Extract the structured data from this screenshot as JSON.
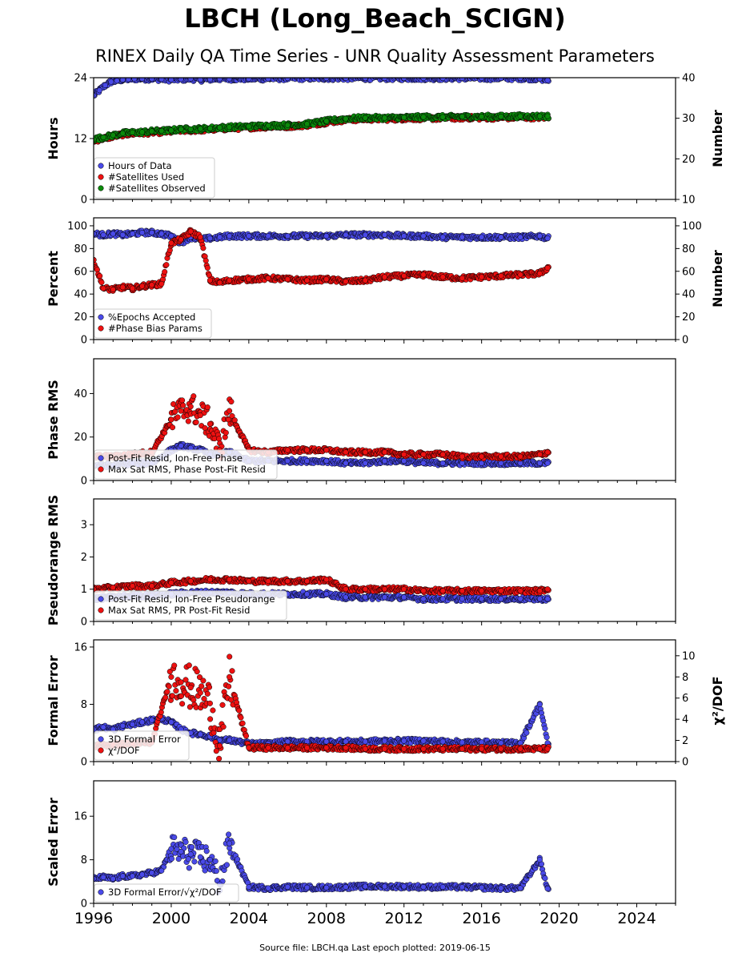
{
  "title": "LBCH (Long_Beach_SCIGN)",
  "subtitle": "RINEX Daily QA Time Series - UNR Quality Assessment Parameters",
  "footer": "Source file: LBCH.qa Last epoch plotted: 2019-06-15",
  "colors": {
    "blue": "#4a4ae8",
    "red": "#ee1111",
    "green": "#0b8a0b",
    "edge": "#000000"
  },
  "chart_data": [
    {
      "type": "scatter",
      "ylabel": "Hours",
      "ylabel_right": "Number",
      "xlim": [
        1996,
        2026
      ],
      "ylim": [
        0,
        24
      ],
      "ylim_right": [
        10,
        40
      ],
      "yticks": [
        0,
        12,
        24
      ],
      "yticks_right": [
        10,
        20,
        30,
        40
      ],
      "legend_position": "lower-left",
      "series": [
        {
          "name": "Hours of Data",
          "color": "blue",
          "axis": "left",
          "x": [
            1996.0,
            1996.3,
            1996.6,
            1996.9,
            1997.2,
            1997.5,
            1997.8,
            1998.1,
            1998.5,
            1999.0,
            1999.5,
            2000.0,
            2000.5,
            2001.0,
            2001.5,
            2002.0,
            2002.5,
            2003.0,
            2004.0,
            2005.0,
            2006.0,
            2007.0,
            2008.0,
            2009.0,
            2010.0,
            2011.0,
            2012.0,
            2013.0,
            2014.0,
            2015.0,
            2016.0,
            2017.0,
            2018.0,
            2019.0,
            2019.4
          ],
          "y": [
            20.5,
            21.5,
            22.5,
            23.2,
            23.4,
            23.6,
            23.7,
            23.8,
            23.8,
            23.8,
            23.7,
            23.6,
            23.7,
            23.8,
            23.6,
            23.7,
            23.8,
            23.8,
            23.8,
            23.8,
            23.9,
            23.9,
            23.9,
            23.9,
            23.9,
            23.9,
            23.9,
            23.9,
            23.9,
            23.9,
            23.9,
            23.9,
            23.9,
            23.8,
            23.5
          ]
        },
        {
          "name": "#Satellites Used",
          "color": "red",
          "axis": "right",
          "x": [
            1996.0,
            1996.5,
            1997.0,
            1997.5,
            1998.0,
            1998.5,
            1999.0,
            1999.5,
            2000.0,
            2000.5,
            2001.0,
            2001.5,
            2002.0,
            2002.5,
            2003.0,
            2004.0,
            2005.0,
            2006.0,
            2007.0,
            2008.0,
            2009.0,
            2010.0,
            2011.0,
            2012.0,
            2013.0,
            2014.0,
            2015.0,
            2016.0,
            2017.0,
            2018.0,
            2019.0,
            2019.4
          ],
          "y": [
            24.5,
            25.0,
            25.5,
            26.0,
            26.2,
            26.3,
            26.5,
            26.6,
            26.7,
            27.0,
            27.0,
            27.1,
            27.2,
            27.4,
            27.5,
            27.7,
            27.9,
            28.0,
            28.3,
            29.0,
            29.6,
            29.8,
            29.8,
            29.9,
            30.0,
            30.0,
            30.1,
            30.1,
            30.1,
            30.2,
            30.2,
            30.2
          ]
        },
        {
          "name": "#Satellites Observed",
          "color": "green",
          "axis": "right",
          "x": [
            1996.0,
            1996.5,
            1997.0,
            1997.5,
            1998.0,
            1998.5,
            1999.0,
            1999.5,
            2000.0,
            2000.5,
            2001.0,
            2001.5,
            2002.0,
            2002.5,
            2003.0,
            2004.0,
            2005.0,
            2006.0,
            2007.0,
            2008.0,
            2009.0,
            2010.0,
            2011.0,
            2012.0,
            2013.0,
            2014.0,
            2015.0,
            2016.0,
            2017.0,
            2018.0,
            2019.0,
            2019.4
          ],
          "y": [
            24.8,
            25.3,
            25.8,
            26.3,
            26.5,
            26.6,
            26.8,
            26.9,
            27.0,
            27.3,
            27.3,
            27.4,
            27.5,
            27.7,
            27.8,
            28.0,
            28.2,
            28.3,
            28.6,
            29.3,
            29.9,
            30.1,
            30.1,
            30.2,
            30.3,
            30.3,
            30.4,
            30.4,
            30.4,
            30.5,
            30.5,
            30.5
          ]
        }
      ]
    },
    {
      "type": "scatter",
      "ylabel": "Percent",
      "ylabel_right": "Number",
      "xlim": [
        1996,
        2026
      ],
      "ylim": [
        0,
        107
      ],
      "ylim_right": [
        0,
        107
      ],
      "yticks": [
        0,
        20,
        40,
        60,
        80,
        100
      ],
      "yticks_right": [
        0,
        20,
        40,
        60,
        80,
        100
      ],
      "legend_position": "lower-left",
      "series": [
        {
          "name": "%Epochs Accepted",
          "color": "blue",
          "axis": "left",
          "x": [
            1996.0,
            1996.5,
            1997.0,
            1997.5,
            1998.0,
            1998.5,
            1999.0,
            1999.5,
            2000.0,
            2000.5,
            2001.0,
            2001.5,
            2002.0,
            2002.5,
            2003.0,
            2004.0,
            2005.0,
            2006.0,
            2007.0,
            2008.0,
            2009.0,
            2010.0,
            2011.0,
            2012.0,
            2013.0,
            2014.0,
            2015.0,
            2016.0,
            2017.0,
            2018.0,
            2019.0,
            2019.4
          ],
          "y": [
            93,
            92,
            93,
            92,
            93,
            94,
            94,
            93,
            91,
            85,
            90,
            88,
            89,
            90,
            91,
            91,
            91,
            91,
            91,
            91,
            92,
            92,
            92,
            91,
            91,
            90,
            90,
            90,
            90,
            90,
            91,
            89
          ]
        },
        {
          "name": "#Phase Bias Params",
          "color": "red",
          "axis": "right",
          "x": [
            1996.0,
            1996.5,
            1997.0,
            1997.5,
            1998.0,
            1998.5,
            1999.0,
            1999.5,
            2000.0,
            2000.5,
            2001.0,
            2001.5,
            2002.0,
            2002.5,
            2003.0,
            2004.0,
            2005.0,
            2006.0,
            2007.0,
            2008.0,
            2009.0,
            2010.0,
            2011.0,
            2012.0,
            2013.0,
            2014.0,
            2015.0,
            2016.0,
            2017.0,
            2018.0,
            2019.0,
            2019.4
          ],
          "y": [
            70,
            45,
            44,
            46,
            45,
            47,
            48,
            49,
            85,
            88,
            95,
            90,
            52,
            50,
            52,
            53,
            54,
            53,
            52,
            53,
            51,
            52,
            55,
            56,
            57,
            55,
            54,
            55,
            56,
            57,
            58,
            63
          ]
        }
      ]
    },
    {
      "type": "scatter",
      "ylabel": "Phase RMS",
      "xlim": [
        1996,
        2026
      ],
      "ylim": [
        0,
        56
      ],
      "yticks": [
        0,
        20,
        40
      ],
      "legend_position": "lower-left",
      "series": [
        {
          "name": "Post-Fit Resid, Ion-Free Phase",
          "color": "blue",
          "axis": "left",
          "x": [
            1996.0,
            1997.0,
            1998.0,
            1999.0,
            2000.0,
            2000.5,
            2001.0,
            2001.5,
            2002.0,
            2002.5,
            2003.0,
            2004.0,
            2005.0,
            2006.0,
            2007.0,
            2008.0,
            2009.0,
            2010.0,
            2011.0,
            2012.0,
            2013.0,
            2014.0,
            2015.0,
            2016.0,
            2017.0,
            2018.0,
            2019.0,
            2019.4
          ],
          "y": [
            7,
            7,
            8,
            8,
            14,
            16,
            15,
            14,
            12,
            12,
            13,
            9,
            9,
            9,
            9,
            9,
            8,
            8,
            9,
            9,
            8,
            8,
            8,
            8,
            8,
            8,
            8,
            8
          ]
        },
        {
          "name": "Max Sat RMS, Phase Post-Fit Resid",
          "color": "red",
          "axis": "left",
          "x": [
            1996.0,
            1997.0,
            1998.0,
            1999.0,
            2000.0,
            2000.5,
            2001.0,
            2001.5,
            2002.0,
            2002.5,
            2003.0,
            2004.0,
            2005.0,
            2006.0,
            2007.0,
            2008.0,
            2009.0,
            2010.0,
            2011.0,
            2012.0,
            2013.0,
            2014.0,
            2015.0,
            2016.0,
            2017.0,
            2018.0,
            2019.0,
            2019.4
          ],
          "y": [
            11,
            11,
            12,
            13,
            28,
            32,
            34,
            30,
            26,
            14,
            32,
            14,
            13,
            14,
            14,
            14,
            13,
            13,
            13,
            12,
            12,
            12,
            11,
            11,
            11,
            11,
            12,
            13
          ]
        }
      ]
    },
    {
      "type": "scatter",
      "ylabel": "Pseudorange RMS",
      "xlim": [
        1996,
        2026
      ],
      "ylim": [
        0,
        3.8
      ],
      "yticks": [
        0,
        1,
        2,
        3
      ],
      "legend_position": "lower-left",
      "series": [
        {
          "name": "Post-Fit Resid, Ion-Free Pseudorange",
          "color": "blue",
          "axis": "left",
          "x": [
            1996.0,
            1997.0,
            1998.0,
            1999.0,
            2000.0,
            2001.0,
            2002.0,
            2003.0,
            2004.0,
            2005.0,
            2006.0,
            2007.0,
            2008.0,
            2009.0,
            2010.0,
            2011.0,
            2012.0,
            2013.0,
            2014.0,
            2015.0,
            2016.0,
            2017.0,
            2018.0,
            2019.0,
            2019.4
          ],
          "y": [
            0.7,
            0.75,
            0.8,
            0.8,
            0.85,
            0.9,
            0.9,
            0.9,
            0.85,
            0.85,
            0.85,
            0.85,
            0.85,
            0.75,
            0.75,
            0.75,
            0.75,
            0.7,
            0.7,
            0.7,
            0.7,
            0.7,
            0.7,
            0.7,
            0.7
          ]
        },
        {
          "name": "Max Sat RMS, PR Post-Fit Resid",
          "color": "red",
          "axis": "left",
          "x": [
            1996.0,
            1997.0,
            1998.0,
            1999.0,
            2000.0,
            2001.0,
            2002.0,
            2003.0,
            2004.0,
            2005.0,
            2006.0,
            2007.0,
            2008.0,
            2009.0,
            2010.0,
            2011.0,
            2012.0,
            2013.0,
            2014.0,
            2015.0,
            2016.0,
            2017.0,
            2018.0,
            2019.0,
            2019.4
          ],
          "y": [
            1.0,
            1.05,
            1.1,
            1.1,
            1.2,
            1.25,
            1.3,
            1.3,
            1.25,
            1.25,
            1.25,
            1.25,
            1.3,
            1.0,
            1.0,
            1.0,
            1.0,
            0.95,
            0.95,
            0.95,
            0.95,
            0.95,
            0.95,
            0.95,
            1.0
          ]
        }
      ]
    },
    {
      "type": "scatter",
      "ylabel": "Formal Error",
      "ylabel_right": "χ²/DOF",
      "xlim": [
        1996,
        2026
      ],
      "ylim": [
        0,
        17
      ],
      "ylim_right": [
        0,
        11.5
      ],
      "yticks": [
        0,
        8,
        16
      ],
      "yticks_right": [
        0,
        2,
        4,
        6,
        8,
        10
      ],
      "legend_position": "lower-left",
      "series": [
        {
          "name": "3D Formal Error",
          "color": "blue",
          "axis": "left",
          "x": [
            1996.0,
            1996.5,
            1997.0,
            1997.5,
            1998.0,
            1998.5,
            1999.0,
            1999.5,
            2000.0,
            2000.5,
            2001.0,
            2001.5,
            2002.0,
            2002.5,
            2003.0,
            2004.0,
            2005.0,
            2006.0,
            2007.0,
            2008.0,
            2009.0,
            2010.0,
            2011.0,
            2012.0,
            2013.0,
            2014.0,
            2015.0,
            2016.0,
            2017.0,
            2018.0,
            2019.0,
            2019.4
          ],
          "y": [
            4.5,
            4.8,
            4.5,
            5.0,
            5.2,
            5.5,
            5.8,
            6.0,
            5.5,
            4.5,
            4.0,
            3.8,
            3.5,
            3.0,
            3.0,
            2.5,
            2.5,
            2.8,
            2.8,
            2.8,
            2.8,
            2.8,
            2.9,
            2.9,
            2.9,
            2.8,
            2.7,
            2.7,
            2.6,
            2.6,
            8.0,
            2.6
          ]
        },
        {
          "name": "χ²/DOF",
          "color": "red",
          "axis": "right",
          "x": [
            1996.0,
            1997.0,
            1998.0,
            1999.0,
            2000.0,
            2000.5,
            2001.0,
            2001.5,
            2002.0,
            2002.5,
            2003.0,
            2004.0,
            2005.0,
            2006.0,
            2007.0,
            2008.0,
            2009.0,
            2010.0,
            2011.0,
            2012.0,
            2013.0,
            2014.0,
            2015.0,
            2016.0,
            2017.0,
            2018.0,
            2019.0,
            2019.4
          ],
          "y": [
            1.5,
            1.6,
            1.7,
            1.8,
            8.0,
            7.5,
            7.0,
            6.5,
            5.5,
            1.5,
            8.0,
            1.3,
            1.3,
            1.3,
            1.3,
            1.3,
            1.3,
            1.2,
            1.2,
            1.2,
            1.2,
            1.2,
            1.2,
            1.2,
            1.2,
            1.2,
            1.2,
            1.2
          ]
        }
      ]
    },
    {
      "type": "scatter",
      "ylabel": "Scaled Error",
      "xlim": [
        1996,
        2026
      ],
      "ylim": [
        0,
        22.5
      ],
      "yticks": [
        0,
        8,
        16
      ],
      "legend_position": "lower-left",
      "series": [
        {
          "name": "3D Formal Error/√χ²/DOF",
          "color": "blue",
          "axis": "left",
          "x": [
            1996.0,
            1996.5,
            1997.0,
            1997.5,
            1998.0,
            1998.5,
            1999.0,
            1999.5,
            2000.0,
            2000.5,
            2001.0,
            2001.5,
            2002.0,
            2002.5,
            2003.0,
            2004.0,
            2005.0,
            2006.0,
            2007.0,
            2008.0,
            2009.0,
            2010.0,
            2011.0,
            2012.0,
            2013.0,
            2014.0,
            2015.0,
            2016.0,
            2017.0,
            2018.0,
            2019.0,
            2019.4
          ],
          "y": [
            4.5,
            4.8,
            4.5,
            5.0,
            5.0,
            5.3,
            5.6,
            6.0,
            10.0,
            9.5,
            9.0,
            8.5,
            8.0,
            3.5,
            11.0,
            3.0,
            2.8,
            3.0,
            2.9,
            2.9,
            3.0,
            3.1,
            3.1,
            3.1,
            3.0,
            3.0,
            3.0,
            2.9,
            2.8,
            2.8,
            8.0,
            2.7
          ]
        }
      ]
    }
  ],
  "x_axis": {
    "ticks": [
      1996,
      2000,
      2004,
      2008,
      2012,
      2016,
      2020,
      2024
    ],
    "labels": [
      "1996",
      "2000",
      "2004",
      "2008",
      "2012",
      "2016",
      "2020",
      "2024"
    ]
  }
}
